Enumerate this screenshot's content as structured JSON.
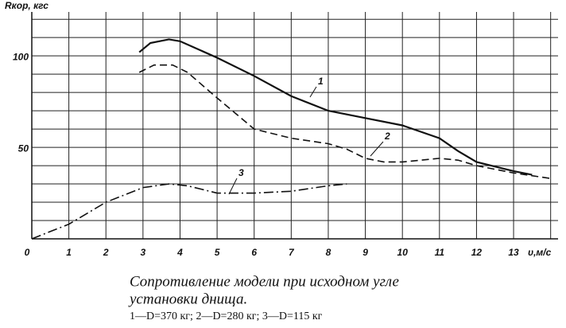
{
  "chart_data": {
    "type": "line",
    "y_label": "Rкор, кгс",
    "x_label": "υ,м/с",
    "xlim": [
      0,
      14.2
    ],
    "ylim": [
      0,
      124
    ],
    "xticks": [
      0,
      1,
      2,
      3,
      4,
      5,
      6,
      7,
      8,
      9,
      10,
      11,
      12,
      13
    ],
    "yticks": [
      50,
      100
    ],
    "xgrid": [
      1,
      2,
      3,
      4,
      5,
      6,
      7,
      8,
      9,
      10,
      11,
      12,
      13,
      14
    ],
    "ygrid": [
      10,
      20,
      30,
      40,
      50,
      60,
      70,
      80,
      90,
      100,
      110,
      120
    ],
    "grid": true,
    "series": [
      {
        "name": "1",
        "color": "#111111",
        "dash": "solid",
        "x": [
          2.9,
          3.2,
          3.7,
          4,
          5,
          6,
          7,
          8,
          9,
          10,
          11,
          11.5,
          12,
          13,
          13.5
        ],
        "values": [
          102,
          107,
          109,
          108,
          99,
          89,
          78,
          70,
          66,
          62,
          55,
          48,
          42,
          37,
          35
        ]
      },
      {
        "name": "2",
        "color": "#111111",
        "dash": "dashed",
        "x": [
          2.9,
          3.3,
          3.8,
          4.2,
          5,
          6,
          7,
          8,
          8.5,
          9,
          9.5,
          10,
          11,
          11.5,
          12,
          13,
          14
        ],
        "values": [
          91,
          95,
          95,
          91,
          77,
          60,
          55,
          52,
          49,
          44,
          42,
          42,
          44,
          43,
          40,
          36,
          33
        ]
      },
      {
        "name": "3",
        "color": "#111111",
        "dash": "dashdot",
        "x": [
          0,
          1,
          2,
          3,
          3.7,
          4.2,
          5,
          6,
          7,
          8,
          8.5
        ],
        "values": [
          0,
          8,
          20,
          28,
          30,
          29,
          25,
          25,
          26,
          29,
          30
        ]
      }
    ],
    "caption": [
      "Сопротивление  модели  при  исходном  угле",
      "установки днища.",
      "1—D=370 кг; 2—D=280 кг; 3—D=115 кг"
    ]
  }
}
